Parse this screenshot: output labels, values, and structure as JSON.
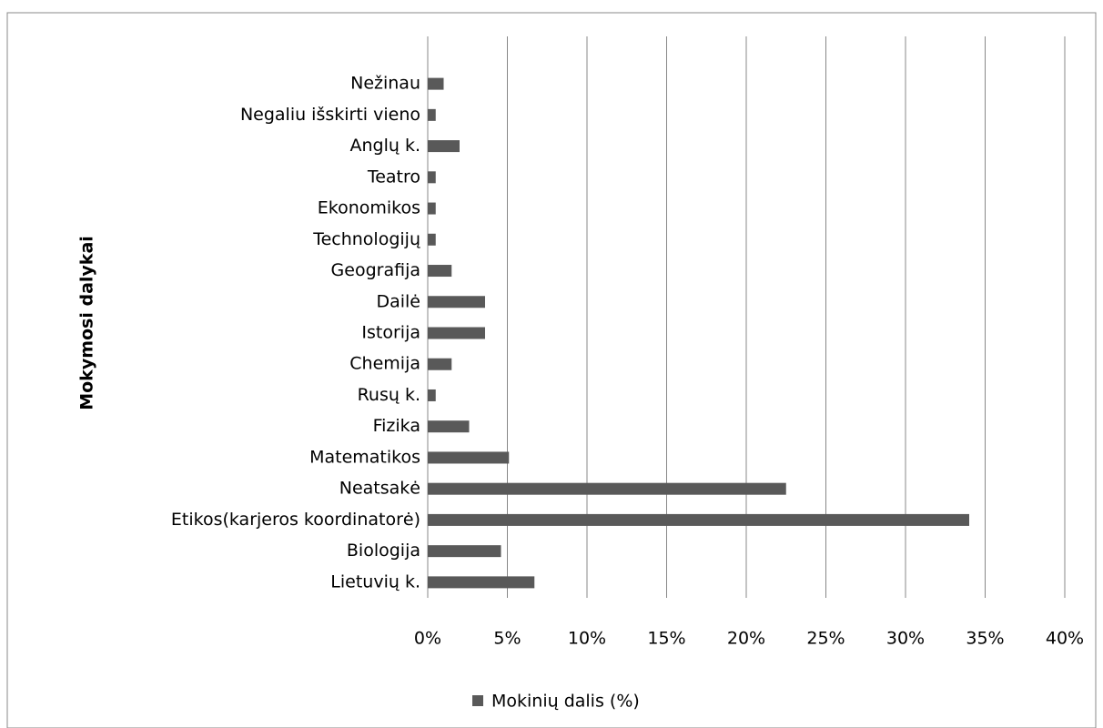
{
  "chart_data": {
    "type": "hbar",
    "categories": [
      "Nežinau",
      "Negaliu išskirti vieno",
      "Anglų k.",
      "Teatro",
      "Ekonomikos",
      "Technologijų",
      "Geografija",
      "Dailė",
      "Istorija",
      "Chemija",
      "Rusų k.",
      "Fizika",
      "Matematikos",
      "Neatsakė",
      "Etikos(karjeros koordinatorė)",
      "Biologija",
      "Lietuvių k."
    ],
    "series": [
      {
        "name": "Mokinių dalis (%)",
        "color": "#595959",
        "values": [
          1.0,
          0.5,
          2.0,
          0.5,
          0.5,
          0.5,
          1.5,
          3.6,
          3.6,
          1.5,
          0.5,
          2.6,
          5.1,
          22.5,
          34.0,
          4.6,
          6.7
        ]
      }
    ],
    "ylabel": "Mokymosi dalykai",
    "xlim": [
      0,
      40
    ],
    "xticks": [
      {
        "value": 0,
        "label": "0%"
      },
      {
        "value": 5,
        "label": "5%"
      },
      {
        "value": 10,
        "label": "10%"
      },
      {
        "value": 15,
        "label": "15%"
      },
      {
        "value": 20,
        "label": "20%"
      },
      {
        "value": 25,
        "label": "25%"
      },
      {
        "value": 30,
        "label": "30%"
      },
      {
        "value": 35,
        "label": "35%"
      },
      {
        "value": 40,
        "label": "40%"
      }
    ],
    "grid": true,
    "legend": "bottom"
  }
}
